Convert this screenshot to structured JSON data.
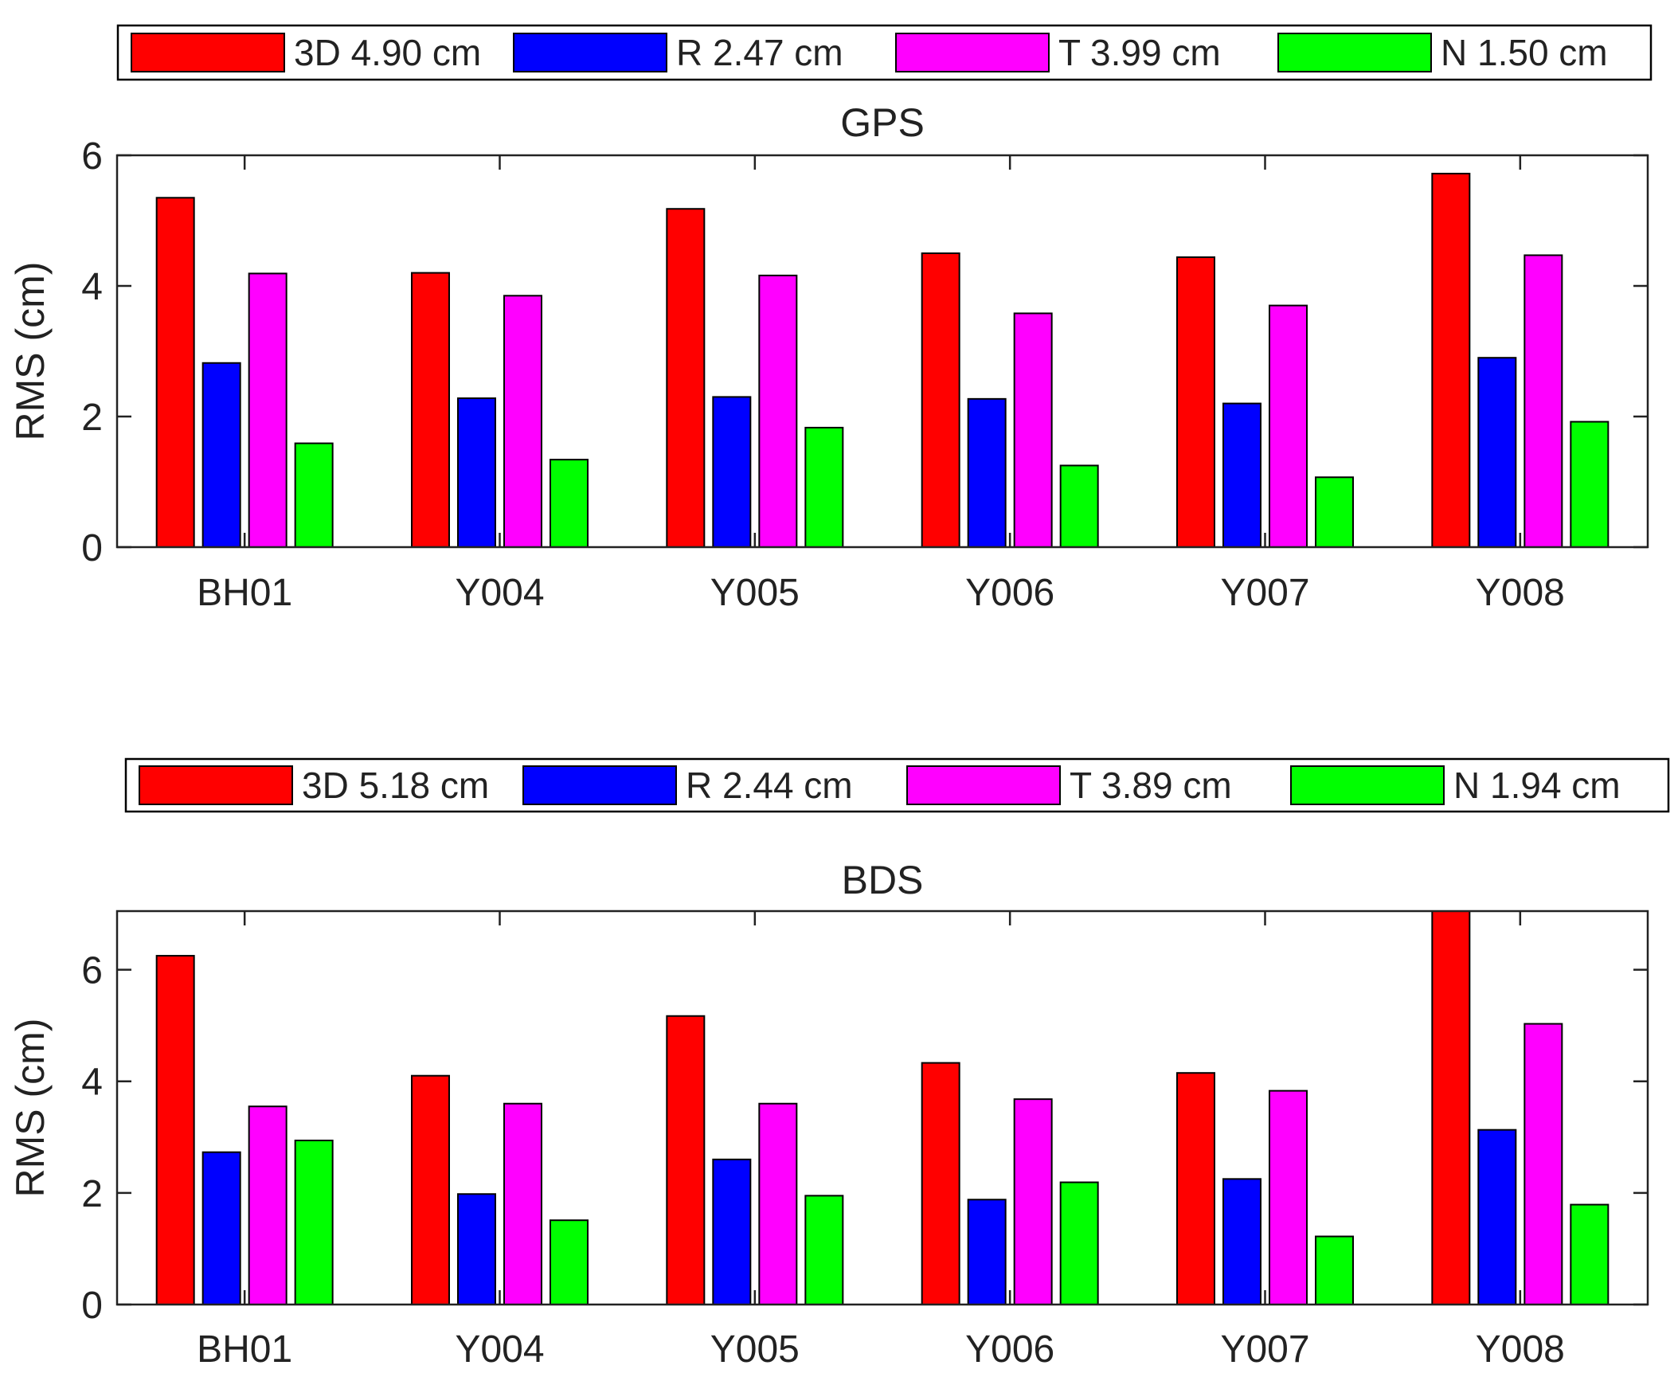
{
  "chart_data": [
    {
      "type": "bar",
      "title": "GPS",
      "xlabel": "",
      "ylabel": "RMS (cm)",
      "categories": [
        "BH01",
        "Y004",
        "Y005",
        "Y006",
        "Y007",
        "Y008"
      ],
      "ylim": [
        0,
        6
      ],
      "yticks": [
        0,
        2,
        4,
        6
      ],
      "legend_position": "top",
      "series": [
        {
          "name": "3D",
          "legend_label": "3D 4.90 cm",
          "color": "#ff0000",
          "values": [
            5.35,
            4.2,
            5.18,
            4.5,
            4.44,
            5.72
          ]
        },
        {
          "name": "R",
          "legend_label": "R 2.47 cm",
          "color": "#0000ff",
          "values": [
            2.82,
            2.28,
            2.3,
            2.27,
            2.2,
            2.9
          ]
        },
        {
          "name": "T",
          "legend_label": "T 3.99 cm",
          "color": "#ff00ff",
          "values": [
            4.19,
            3.85,
            4.16,
            3.58,
            3.7,
            4.47
          ]
        },
        {
          "name": "N",
          "legend_label": "N 1.50 cm",
          "color": "#00ff00",
          "values": [
            1.59,
            1.34,
            1.83,
            1.25,
            1.07,
            1.92
          ]
        }
      ]
    },
    {
      "type": "bar",
      "title": "BDS",
      "xlabel": "",
      "ylabel": "RMS (cm)",
      "categories": [
        "BH01",
        "Y004",
        "Y005",
        "Y006",
        "Y007",
        "Y008"
      ],
      "ylim": [
        0,
        7.05
      ],
      "yticks": [
        0,
        2,
        4,
        6
      ],
      "legend_position": "top",
      "series": [
        {
          "name": "3D",
          "legend_label": "3D 5.18 cm",
          "color": "#ff0000",
          "values": [
            6.25,
            4.1,
            5.17,
            4.33,
            4.15,
            7.05
          ]
        },
        {
          "name": "R",
          "legend_label": "R 2.44 cm",
          "color": "#0000ff",
          "values": [
            2.73,
            1.98,
            2.6,
            1.88,
            2.25,
            3.13
          ]
        },
        {
          "name": "T",
          "legend_label": "T 3.89 cm",
          "color": "#ff00ff",
          "values": [
            3.55,
            3.6,
            3.6,
            3.68,
            3.83,
            5.03
          ]
        },
        {
          "name": "N",
          "legend_label": "N 1.94 cm",
          "color": "#00ff00",
          "values": [
            2.94,
            1.51,
            1.95,
            2.19,
            1.22,
            1.79
          ]
        }
      ]
    }
  ]
}
